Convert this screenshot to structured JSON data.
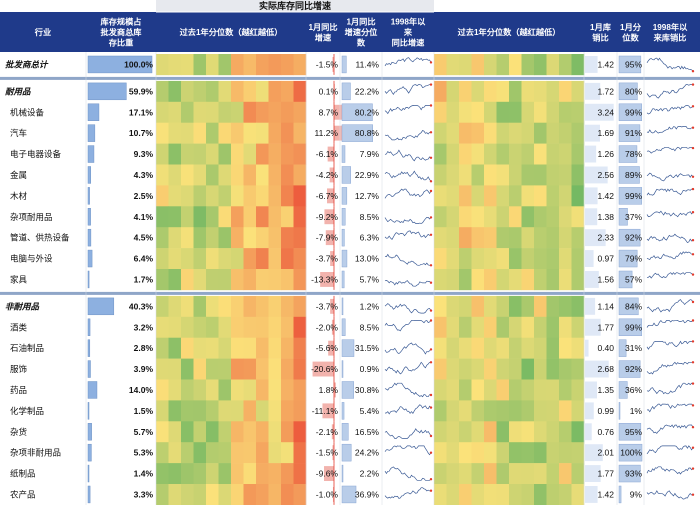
{
  "header": {
    "group_title": "实际库存同比增速",
    "columns": [
      [
        "行业"
      ],
      [
        "库存规模占",
        "批发商总库",
        "存比重"
      ],
      [
        "过去1年分位数（越红越低）"
      ],
      [
        "1月同比",
        "增速"
      ],
      [
        "1月同比",
        "增速分位",
        "数"
      ],
      [
        "1998年以",
        "来",
        "同比增速"
      ],
      [
        "过去1年分位数（越红越低）"
      ],
      [
        "1月库",
        "销比"
      ],
      [
        "1月分",
        "位数"
      ],
      [
        "1998年以",
        "来库销比"
      ]
    ]
  },
  "colors": {
    "header_bg": "#1f3a8a",
    "header_text": "#ffffff",
    "bar": "#8db0e0",
    "bar_alt": "#b9cde9",
    "heat_low": "#e8332b",
    "heat_mid": "#fbe27a",
    "heat_high": "#3fa85a",
    "spark": "#3a5a95",
    "spark_mark": "#e33b2c",
    "zero_line": "#e23a2c"
  },
  "chart_data": {
    "type": "table",
    "rows": [
      {
        "name": "批发商总计",
        "italic": true,
        "share": 100.0,
        "yoy": -1.5,
        "yoy_pct": 11.4,
        "ratio": 1.42,
        "ratio_pct": 95
      },
      {
        "name": "耐用品",
        "italic": true,
        "share": 59.9,
        "yoy": 0.1,
        "yoy_pct": 22.2,
        "ratio": 1.72,
        "ratio_pct": 80
      },
      {
        "name": "机械设备",
        "share": 17.1,
        "yoy": 8.7,
        "yoy_pct": 80.2,
        "ratio": 3.24,
        "ratio_pct": 99
      },
      {
        "name": "汽车",
        "share": 10.7,
        "yoy": 11.2,
        "yoy_pct": 80.8,
        "ratio": 1.69,
        "ratio_pct": 91
      },
      {
        "name": "电子电器设备",
        "share": 9.3,
        "yoy": -6.1,
        "yoy_pct": 7.9,
        "ratio": 1.26,
        "ratio_pct": 78
      },
      {
        "name": "金属",
        "share": 4.3,
        "yoy": -4.2,
        "yoy_pct": 22.9,
        "ratio": 2.56,
        "ratio_pct": 89
      },
      {
        "name": "木材",
        "share": 2.5,
        "yoy": -6.7,
        "yoy_pct": 12.7,
        "ratio": 1.42,
        "ratio_pct": 99
      },
      {
        "name": "杂项耐用品",
        "share": 4.1,
        "yoy": -9.2,
        "yoy_pct": 8.5,
        "ratio": 1.38,
        "ratio_pct": 37
      },
      {
        "name": "管道、供热设备",
        "share": 4.5,
        "yoy": -7.9,
        "yoy_pct": 6.3,
        "ratio": 2.33,
        "ratio_pct": 92
      },
      {
        "name": "电脑与外设",
        "share": 6.4,
        "yoy": -3.7,
        "yoy_pct": 13.0,
        "ratio": 0.97,
        "ratio_pct": 79
      },
      {
        "name": "家具",
        "share": 1.7,
        "yoy": -13.3,
        "yoy_pct": 5.7,
        "ratio": 1.56,
        "ratio_pct": 57
      },
      {
        "name": "非耐用品",
        "italic": true,
        "share": 40.3,
        "yoy": -3.7,
        "yoy_pct": 1.2,
        "ratio": 1.14,
        "ratio_pct": 84
      },
      {
        "name": "酒类",
        "share": 3.2,
        "yoy": -2.0,
        "yoy_pct": 8.5,
        "ratio": 1.77,
        "ratio_pct": 99
      },
      {
        "name": "石油制品",
        "share": 2.8,
        "yoy": -5.6,
        "yoy_pct": 31.5,
        "ratio": 0.4,
        "ratio_pct": 31
      },
      {
        "name": "服饰",
        "share": 3.9,
        "yoy": -20.6,
        "yoy_pct": 0.9,
        "ratio": 2.68,
        "ratio_pct": 92
      },
      {
        "name": "药品",
        "share": 14.0,
        "yoy": 1.8,
        "yoy_pct": 30.8,
        "ratio": 1.35,
        "ratio_pct": 36
      },
      {
        "name": "化学制品",
        "share": 1.5,
        "yoy": -11.1,
        "yoy_pct": 5.4,
        "ratio": 0.99,
        "ratio_pct": 1
      },
      {
        "name": "杂货",
        "share": 5.7,
        "yoy": -2.1,
        "yoy_pct": 16.5,
        "ratio": 0.76,
        "ratio_pct": 95
      },
      {
        "name": "杂项非耐用品",
        "share": 5.3,
        "yoy": -1.5,
        "yoy_pct": 24.2,
        "ratio": 2.01,
        "ratio_pct": 100
      },
      {
        "name": "纸制品",
        "share": 1.4,
        "yoy": -9.6,
        "yoy_pct": 2.2,
        "ratio": 1.77,
        "ratio_pct": 93
      },
      {
        "name": "农产品",
        "share": 3.3,
        "yoy": -1.0,
        "yoy_pct": 36.9,
        "ratio": 1.42,
        "ratio_pct": 9
      }
    ]
  }
}
